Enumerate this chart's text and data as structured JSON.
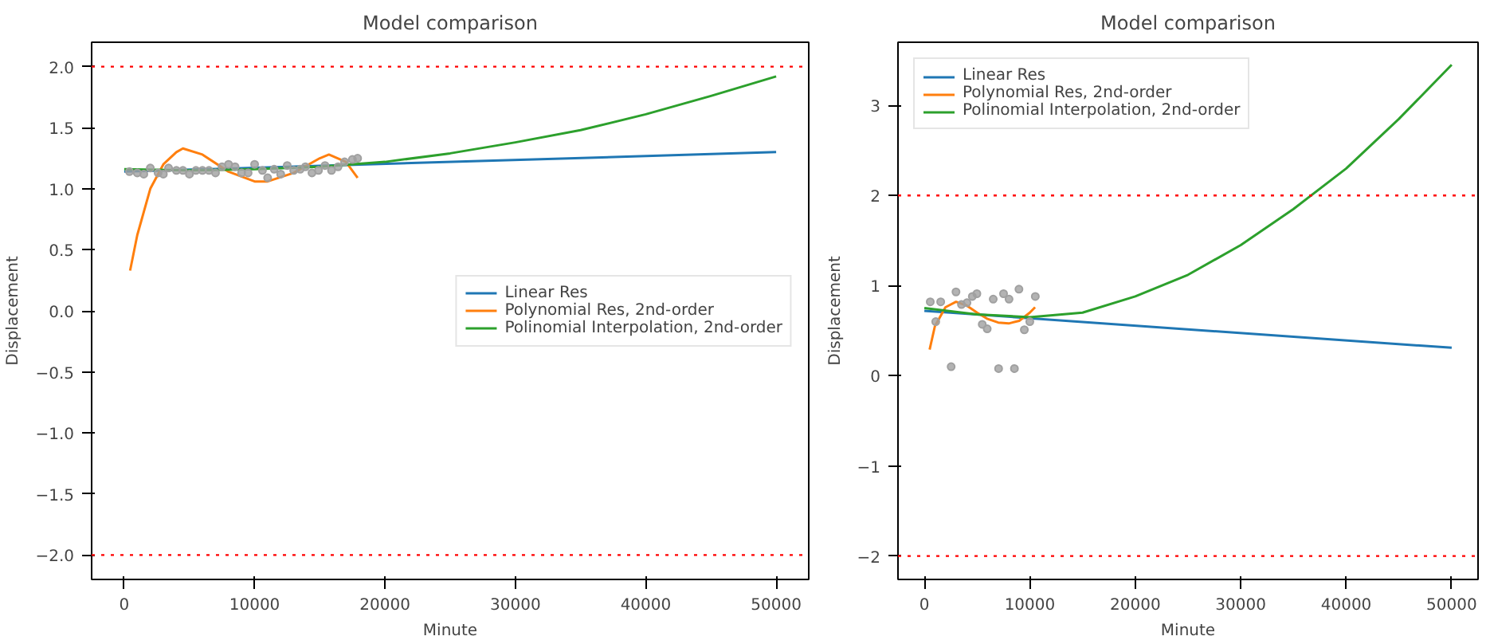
{
  "chart_data": [
    {
      "type": "line",
      "title": "Model comparison",
      "xlabel": "Minute",
      "ylabel": "Displacement",
      "legend": "right",
      "grid": false,
      "xlim": [
        -2500,
        52500
      ],
      "ylim": [
        -2.2,
        2.2
      ],
      "xticks": [
        0,
        10000,
        20000,
        30000,
        40000,
        50000
      ],
      "yticks": [
        {
          "value": -2.0,
          "label": "−2.0"
        },
        {
          "value": -1.5,
          "label": "−1.5"
        },
        {
          "value": -1.0,
          "label": "−1.0"
        },
        {
          "value": -0.5,
          "label": "−0.5"
        },
        {
          "value": 0.0,
          "label": "0.0"
        },
        {
          "value": 0.5,
          "label": "0.5"
        },
        {
          "value": 1.0,
          "label": "1.0"
        },
        {
          "value": 1.5,
          "label": "1.5"
        },
        {
          "value": 2.0,
          "label": "2.0"
        }
      ],
      "ref_lines": [
        {
          "axis": "y",
          "value": 2.0,
          "color": "#ff0000",
          "line_style": "dotted"
        },
        {
          "axis": "y",
          "value": -2.0,
          "color": "#ff0000",
          "line_style": "dotted"
        }
      ],
      "series": [
        {
          "type": "scatter",
          "color": "#a0a0a0",
          "marker": "circle",
          "x": [
            400,
            1000,
            1500,
            2000,
            2600,
            3000,
            3400,
            4000,
            4500,
            5000,
            5500,
            6000,
            6500,
            7000,
            7500,
            8000,
            8500,
            9000,
            9500,
            10000,
            10600,
            11000,
            11500,
            12000,
            12500,
            13000,
            13500,
            13900,
            14400,
            14900,
            15400,
            15900,
            16400,
            16900,
            17500,
            17900
          ],
          "values": [
            1.14,
            1.13,
            1.12,
            1.17,
            1.13,
            1.12,
            1.17,
            1.15,
            1.15,
            1.12,
            1.15,
            1.15,
            1.15,
            1.13,
            1.18,
            1.2,
            1.18,
            1.13,
            1.13,
            1.2,
            1.15,
            1.09,
            1.16,
            1.12,
            1.19,
            1.15,
            1.16,
            1.18,
            1.13,
            1.15,
            1.19,
            1.15,
            1.18,
            1.22,
            1.24,
            1.25
          ]
        },
        {
          "name": "Linear Res",
          "color": "#1f77b4",
          "x": [
            0,
            50000
          ],
          "values": [
            1.14,
            1.3
          ]
        },
        {
          "name": "Polynomial Res, 2nd-order",
          "color": "#ff7f0e",
          "x": [
            450,
            1000,
            2000,
            3000,
            4000,
            4500,
            6000,
            8000,
            10000,
            11000,
            13000,
            15000,
            15700,
            17000,
            17900
          ],
          "values": [
            0.33,
            0.62,
            1.0,
            1.2,
            1.3,
            1.33,
            1.28,
            1.14,
            1.06,
            1.06,
            1.13,
            1.25,
            1.28,
            1.22,
            1.09
          ]
        },
        {
          "name": "Polinomial Interpolation, 2nd-order",
          "color": "#2ca02c",
          "x": [
            0,
            5000,
            10000,
            15000,
            20000,
            25000,
            30000,
            35000,
            40000,
            45000,
            50000
          ],
          "values": [
            1.16,
            1.15,
            1.16,
            1.18,
            1.22,
            1.29,
            1.38,
            1.48,
            1.61,
            1.76,
            1.92
          ]
        }
      ]
    },
    {
      "type": "line",
      "title": "Model comparison",
      "xlabel": "Minute",
      "ylabel": "Displacement",
      "legend": "top left",
      "grid": false,
      "xlim": [
        -2500,
        52500
      ],
      "ylim": [
        -2.26,
        3.7
      ],
      "xticks": [
        0,
        10000,
        20000,
        30000,
        40000,
        50000
      ],
      "yticks": [
        {
          "value": -2,
          "label": "−2"
        },
        {
          "value": -1,
          "label": "−1"
        },
        0,
        1,
        2,
        3
      ],
      "ref_lines": [
        {
          "axis": "y",
          "value": 2,
          "color": "#ff0000",
          "line_style": "dotted"
        },
        {
          "axis": "y",
          "value": -2,
          "color": "#ff0000",
          "line_style": "dotted"
        }
      ],
      "series": [
        {
          "type": "scatter",
          "color": "#a0a0a0",
          "marker": "circle",
          "x": [
            560,
            1550,
            1080,
            2540,
            3000,
            3520,
            4040,
            4550,
            4980,
            5490,
            5960,
            6530,
            7040,
            7510,
            8030,
            8540,
            8970,
            9480,
            10000,
            10520
          ],
          "values": [
            0.82,
            0.82,
            0.6,
            0.1,
            0.93,
            0.79,
            0.81,
            0.88,
            0.91,
            0.57,
            0.52,
            0.85,
            0.08,
            0.91,
            0.85,
            0.08,
            0.96,
            0.51,
            0.6,
            0.88
          ]
        },
        {
          "name": "Linear Res",
          "color": "#1f77b4",
          "x": [
            0,
            50000
          ],
          "values": [
            0.72,
            0.31
          ]
        },
        {
          "name": "Polynomial Res, 2nd-order",
          "color": "#ff7f0e",
          "x": [
            500,
            1000,
            2000,
            3000,
            4000,
            5000,
            6000,
            7000,
            8000,
            9000,
            10000,
            10500
          ],
          "values": [
            0.29,
            0.55,
            0.76,
            0.82,
            0.78,
            0.7,
            0.63,
            0.59,
            0.58,
            0.61,
            0.7,
            0.76
          ]
        },
        {
          "name": "Polinomial Interpolation, 2nd-order",
          "color": "#2ca02c",
          "x": [
            0,
            5000,
            10000,
            15000,
            20000,
            25000,
            30000,
            35000,
            40000,
            45000,
            50000
          ],
          "values": [
            0.75,
            0.68,
            0.65,
            0.7,
            0.88,
            1.12,
            1.45,
            1.85,
            2.3,
            2.85,
            3.45
          ]
        }
      ]
    }
  ]
}
